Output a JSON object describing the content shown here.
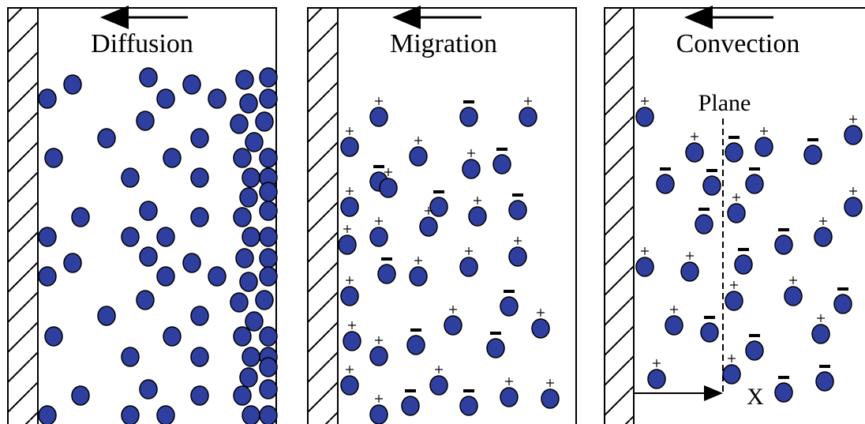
{
  "panels": [
    {
      "title": "Diffusion"
    },
    {
      "title": "Migration"
    },
    {
      "title": "Convection"
    }
  ],
  "plane_label": "Plane",
  "axis_label": "X"
}
